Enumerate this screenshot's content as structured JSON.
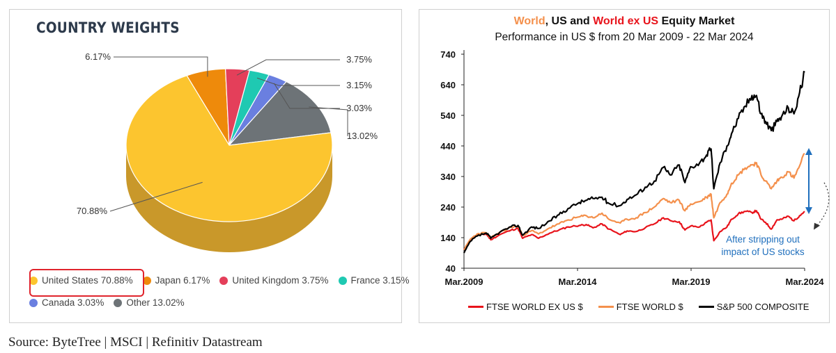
{
  "pie": {
    "title": "COUNTRY WEIGHTS",
    "chart_data": {
      "type": "pie",
      "title": "COUNTRY WEIGHTS",
      "slices": [
        {
          "label": "United States",
          "value": 70.88,
          "color": "#fcc52f",
          "side": "#c9982a",
          "display": "70.88%"
        },
        {
          "label": "Japan",
          "value": 6.17,
          "color": "#ee8a0b",
          "side": "#b86a08",
          "display": "6.17%"
        },
        {
          "label": "United Kingdom",
          "value": 3.75,
          "color": "#e43f5a",
          "side": "#a82d42",
          "display": "3.75%"
        },
        {
          "label": "France",
          "value": 3.15,
          "color": "#1fc9b2",
          "side": "#159a88",
          "display": "3.15%"
        },
        {
          "label": "Canada",
          "value": 3.03,
          "color": "#6a7fe0",
          "side": "#4d5ea9",
          "display": "3.03%"
        },
        {
          "label": "Other",
          "value": 13.02,
          "color": "#6d7377",
          "side": "#4f5458",
          "display": "13.02%"
        }
      ]
    },
    "legend": [
      {
        "text": "United States 70.88%",
        "color": "#fcc52f"
      },
      {
        "text": "Japan 6.17%",
        "color": "#ee8a0b"
      },
      {
        "text": "United Kingdom 3.75%",
        "color": "#e43f5a"
      },
      {
        "text": "France 3.15%",
        "color": "#1fc9b2"
      },
      {
        "text": "Canada 3.03%",
        "color": "#6a7fe0"
      },
      {
        "text": "Other 13.02%",
        "color": "#6d7377"
      }
    ]
  },
  "line": {
    "title_world": "World",
    "title_sep1": ", ",
    "title_us": "US",
    "title_and": " and ",
    "title_exus": "World ex US",
    "title_rest": " Equity Market",
    "subtitle": "Performance in US $ from 20 Mar 2009 - 22 Mar 2024",
    "annotation_line1": "After stripping out",
    "annotation_line2": "impact of US stocks",
    "chart_data": {
      "type": "line",
      "yticks": [
        740,
        640,
        540,
        440,
        340,
        240,
        140,
        40
      ],
      "ylim": [
        40,
        740
      ],
      "xticks": [
        "Mar.2009",
        "Mar.2014",
        "Mar.2019",
        "Mar.2024"
      ],
      "xlim": [
        2009.22,
        2024.22
      ],
      "series": [
        {
          "name": "FTSE WORLD EX US $",
          "color": "#e8131b",
          "points": [
            [
              2009.22,
              100
            ],
            [
              2009.5,
              132
            ],
            [
              2009.8,
              148
            ],
            [
              2010.2,
              152
            ],
            [
              2010.4,
              133
            ],
            [
              2010.8,
              150
            ],
            [
              2011.3,
              165
            ],
            [
              2011.6,
              170
            ],
            [
              2011.8,
              138
            ],
            [
              2012.2,
              150
            ],
            [
              2012.5,
              138
            ],
            [
              2013.0,
              155
            ],
            [
              2013.4,
              165
            ],
            [
              2013.8,
              175
            ],
            [
              2014.3,
              180
            ],
            [
              2014.6,
              183
            ],
            [
              2014.9,
              172
            ],
            [
              2015.3,
              185
            ],
            [
              2015.6,
              168
            ],
            [
              2016.1,
              150
            ],
            [
              2016.4,
              162
            ],
            [
              2016.8,
              160
            ],
            [
              2017.2,
              172
            ],
            [
              2017.6,
              185
            ],
            [
              2018.0,
              205
            ],
            [
              2018.3,
              196
            ],
            [
              2018.7,
              192
            ],
            [
              2018.95,
              165
            ],
            [
              2019.2,
              178
            ],
            [
              2019.6,
              175
            ],
            [
              2019.9,
              190
            ],
            [
              2020.1,
              198
            ],
            [
              2020.22,
              130
            ],
            [
              2020.5,
              160
            ],
            [
              2020.8,
              175
            ],
            [
              2021.0,
              200
            ],
            [
              2021.3,
              218
            ],
            [
              2021.6,
              226
            ],
            [
              2021.9,
              222
            ],
            [
              2022.1,
              228
            ],
            [
              2022.3,
              200
            ],
            [
              2022.5,
              190
            ],
            [
              2022.75,
              168
            ],
            [
              2023.0,
              198
            ],
            [
              2023.2,
              200
            ],
            [
              2023.5,
              210
            ],
            [
              2023.75,
              195
            ],
            [
              2024.0,
              212
            ],
            [
              2024.22,
              226
            ]
          ]
        },
        {
          "name": "FTSE WORLD $",
          "color": "#f4904c",
          "points": [
            [
              2009.22,
              100
            ],
            [
              2009.5,
              135
            ],
            [
              2009.8,
              152
            ],
            [
              2010.2,
              156
            ],
            [
              2010.4,
              138
            ],
            [
              2010.8,
              158
            ],
            [
              2011.3,
              174
            ],
            [
              2011.6,
              178
            ],
            [
              2011.8,
              148
            ],
            [
              2012.2,
              163
            ],
            [
              2012.5,
              152
            ],
            [
              2013.0,
              172
            ],
            [
              2013.4,
              185
            ],
            [
              2013.8,
              198
            ],
            [
              2014.3,
              208
            ],
            [
              2014.6,
              212
            ],
            [
              2014.9,
              205
            ],
            [
              2015.3,
              220
            ],
            [
              2015.6,
              200
            ],
            [
              2016.1,
              188
            ],
            [
              2016.4,
              200
            ],
            [
              2016.8,
              205
            ],
            [
              2017.2,
              222
            ],
            [
              2017.6,
              240
            ],
            [
              2018.0,
              268
            ],
            [
              2018.3,
              255
            ],
            [
              2018.7,
              262
            ],
            [
              2018.95,
              228
            ],
            [
              2019.2,
              250
            ],
            [
              2019.6,
              258
            ],
            [
              2019.9,
              272
            ],
            [
              2020.1,
              282
            ],
            [
              2020.22,
              205
            ],
            [
              2020.5,
              255
            ],
            [
              2020.8,
              282
            ],
            [
              2021.0,
              318
            ],
            [
              2021.3,
              345
            ],
            [
              2021.6,
              368
            ],
            [
              2021.9,
              378
            ],
            [
              2022.1,
              385
            ],
            [
              2022.3,
              345
            ],
            [
              2022.5,
              325
            ],
            [
              2022.75,
              300
            ],
            [
              2023.0,
              325
            ],
            [
              2023.2,
              338
            ],
            [
              2023.5,
              355
            ],
            [
              2023.75,
              335
            ],
            [
              2024.0,
              375
            ],
            [
              2024.22,
              415
            ]
          ]
        },
        {
          "name": "S&P 500 COMPOSITE",
          "color": "#000000",
          "points": [
            [
              2009.22,
              90
            ],
            [
              2009.5,
              128
            ],
            [
              2009.8,
              145
            ],
            [
              2010.2,
              155
            ],
            [
              2010.4,
              138
            ],
            [
              2010.8,
              158
            ],
            [
              2011.3,
              176
            ],
            [
              2011.6,
              180
            ],
            [
              2011.8,
              148
            ],
            [
              2012.2,
              175
            ],
            [
              2012.5,
              170
            ],
            [
              2013.0,
              195
            ],
            [
              2013.4,
              215
            ],
            [
              2013.8,
              235
            ],
            [
              2014.3,
              255
            ],
            [
              2014.6,
              262
            ],
            [
              2014.9,
              268
            ],
            [
              2015.3,
              272
            ],
            [
              2015.6,
              252
            ],
            [
              2016.1,
              245
            ],
            [
              2016.4,
              265
            ],
            [
              2016.8,
              280
            ],
            [
              2017.2,
              305
            ],
            [
              2017.6,
              325
            ],
            [
              2018.0,
              370
            ],
            [
              2018.3,
              345
            ],
            [
              2018.7,
              378
            ],
            [
              2018.95,
              320
            ],
            [
              2019.2,
              372
            ],
            [
              2019.6,
              385
            ],
            [
              2019.9,
              410
            ],
            [
              2020.1,
              430
            ],
            [
              2020.22,
              300
            ],
            [
              2020.5,
              385
            ],
            [
              2020.8,
              440
            ],
            [
              2021.0,
              480
            ],
            [
              2021.3,
              530
            ],
            [
              2021.6,
              570
            ],
            [
              2021.9,
              605
            ],
            [
              2022.1,
              605
            ],
            [
              2022.3,
              545
            ],
            [
              2022.5,
              520
            ],
            [
              2022.75,
              490
            ],
            [
              2023.0,
              520
            ],
            [
              2023.2,
              535
            ],
            [
              2023.5,
              565
            ],
            [
              2023.75,
              545
            ],
            [
              2024.0,
              615
            ],
            [
              2024.22,
              680
            ]
          ]
        }
      ]
    }
  },
  "source": "Source: ByteTree  |  MSCI  |  Refinitiv Datastream"
}
